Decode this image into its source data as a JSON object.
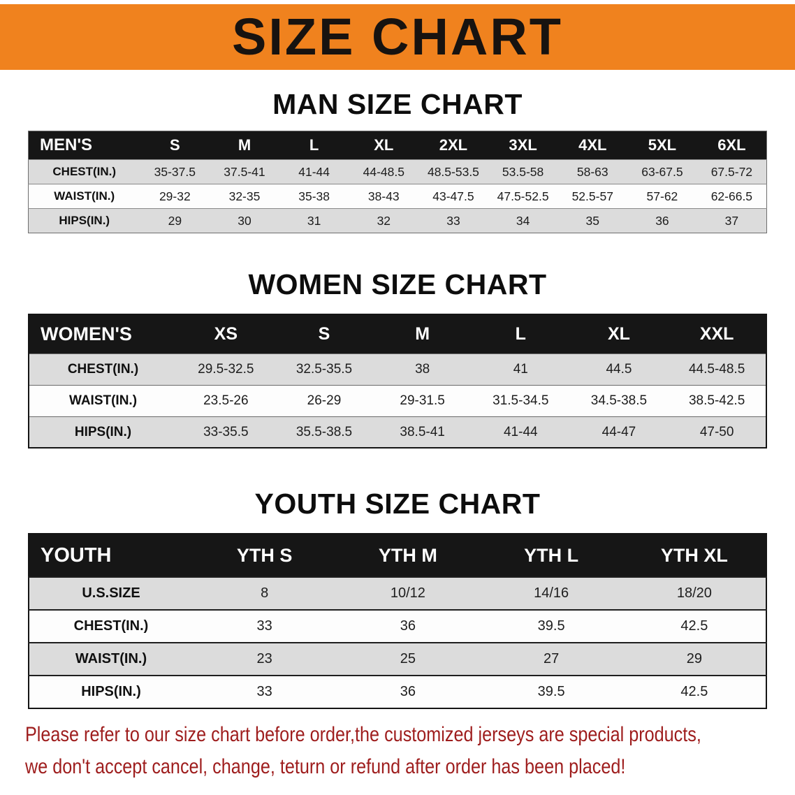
{
  "banner": {
    "title": "SIZE CHART"
  },
  "colors": {
    "banner": "#F0821E",
    "table-header": "#161616",
    "row-gray": "#DCDCDC",
    "notice-red": "#9E1D1D"
  },
  "chart_data": [
    {
      "type": "table",
      "title": "MAN SIZE CHART",
      "header": [
        "MEN'S",
        "S",
        "M",
        "L",
        "XL",
        "2XL",
        "3XL",
        "4XL",
        "5XL",
        "6XL"
      ],
      "rows": [
        {
          "label": "CHEST(IN.)",
          "values": [
            "35-37.5",
            "37.5-41",
            "41-44",
            "44-48.5",
            "48.5-53.5",
            "53.5-58",
            "58-63",
            "63-67.5",
            "67.5-72"
          ]
        },
        {
          "label": "WAIST(IN.)",
          "values": [
            "29-32",
            "32-35",
            "35-38",
            "38-43",
            "43-47.5",
            "47.5-52.5",
            "52.5-57",
            "57-62",
            "62-66.5"
          ]
        },
        {
          "label": "HIPS(IN.)",
          "values": [
            "29",
            "30",
            "31",
            "32",
            "33",
            "34",
            "35",
            "36",
            "37"
          ]
        }
      ]
    },
    {
      "type": "table",
      "title": "WOMEN SIZE CHART",
      "header": [
        "WOMEN'S",
        "XS",
        "S",
        "M",
        "L",
        "XL",
        "XXL"
      ],
      "rows": [
        {
          "label": "CHEST(IN.)",
          "values": [
            "29.5-32.5",
            "32.5-35.5",
            "38",
            "41",
            "44.5",
            "44.5-48.5"
          ]
        },
        {
          "label": "WAIST(IN.)",
          "values": [
            "23.5-26",
            "26-29",
            "29-31.5",
            "31.5-34.5",
            "34.5-38.5",
            "38.5-42.5"
          ]
        },
        {
          "label": "HIPS(IN.)",
          "values": [
            "33-35.5",
            "35.5-38.5",
            "38.5-41",
            "41-44",
            "44-47",
            "47-50"
          ]
        }
      ]
    },
    {
      "type": "table",
      "title": "YOUTH SIZE CHART",
      "header": [
        "YOUTH",
        "YTH S",
        "YTH M",
        "YTH L",
        "YTH XL"
      ],
      "rows": [
        {
          "label": "U.S.SIZE",
          "values": [
            "8",
            "10/12",
            "14/16",
            "18/20"
          ]
        },
        {
          "label": "CHEST(IN.)",
          "values": [
            "33",
            "36",
            "39.5",
            "42.5"
          ]
        },
        {
          "label": "WAIST(IN.)",
          "values": [
            "23",
            "25",
            "27",
            "29"
          ]
        },
        {
          "label": "HIPS(IN.)",
          "values": [
            "33",
            "36",
            "39.5",
            "42.5"
          ]
        }
      ]
    }
  ],
  "footer": {
    "line1": "Please refer to our size chart before order,the customized jerseys are special products,",
    "line2": "we don't accept cancel, change, teturn or refund after order has been placed!"
  }
}
